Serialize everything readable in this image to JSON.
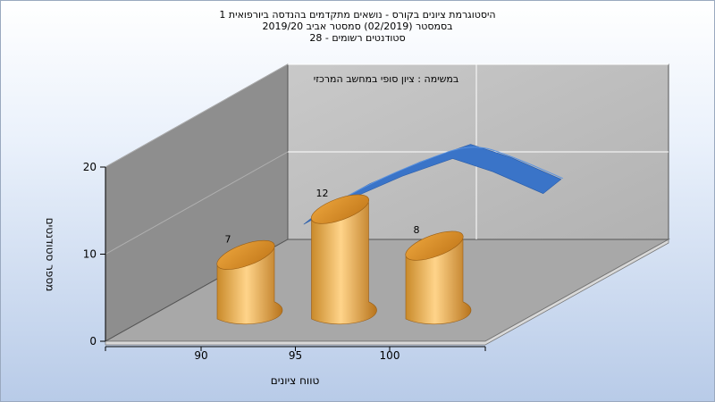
{
  "chart_data": {
    "type": "bar",
    "title_lines": [
      "היסטוגרמת ציונים בקורס - נושאים מתקדמים בהנדסה ביורפואית 1",
      "בסמסטר  (02/2019)  סמסטר אביב 2019/20",
      "סטודנטים רשומים - 28"
    ],
    "annotation": "במשימה : ציון סופי במחשב המרכזי",
    "xlabel": "טווח ציונים",
    "ylabel": "מספר סטודנטים",
    "categories": [
      "90",
      "95",
      "100"
    ],
    "values": [
      7,
      12,
      8
    ],
    "ylim": [
      0,
      20
    ],
    "yticks": [
      0,
      10,
      20
    ],
    "grid": true,
    "curve": {
      "x": [
        94.6,
        97,
        99.5,
        102,
        104,
        106.5
      ],
      "y": [
        15,
        18,
        20.5,
        22.5,
        21,
        18.5
      ]
    }
  }
}
